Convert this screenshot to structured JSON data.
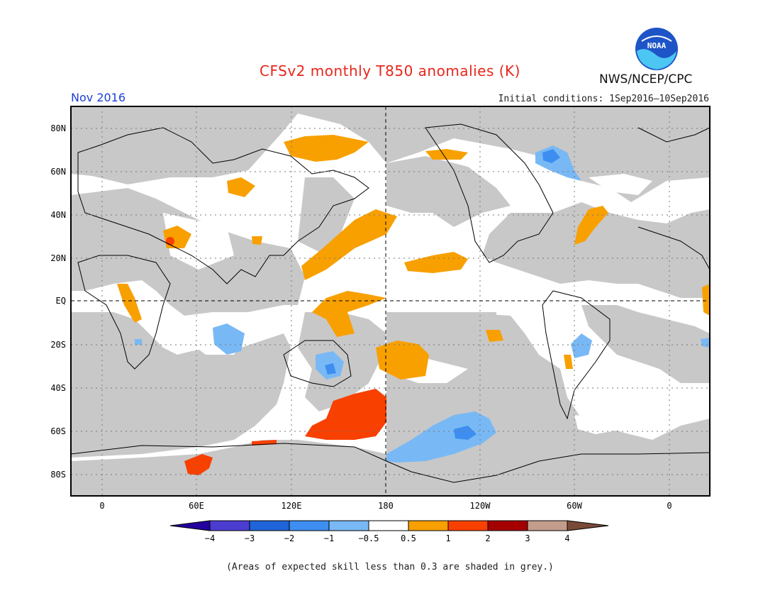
{
  "title": "CFSv2 monthly T850 anomalies (K)",
  "agency": "NWS/NCEP/CPC",
  "logo_text": "NOAA",
  "month": "Nov 2016",
  "initial_conditions": "Initial conditions: 1Sep2016–10Sep2016",
  "caption": "(Areas of expected skill less than 0.3 are shaded in grey.)",
  "map": {
    "lat_ticks": [
      "80N",
      "60N",
      "40N",
      "20N",
      "EQ",
      "20S",
      "40S",
      "60S",
      "80S"
    ],
    "lon_ticks": [
      "0",
      "60E",
      "120E",
      "180",
      "120W",
      "60W",
      "0"
    ],
    "colors": {
      "grey_low_skill": "#c8c8c8",
      "neutral": "#ffffff"
    }
  },
  "colorbar": {
    "labels": [
      "−4",
      "−3",
      "−2",
      "−1",
      "−0.5",
      "0.5",
      "1",
      "2",
      "3",
      "4"
    ],
    "colors": [
      "#24009e",
      "#4b3dd0",
      "#1f64d8",
      "#3d8ef0",
      "#78b9f5",
      "#ffffff",
      "#f8a000",
      "#f84000",
      "#a50000",
      "#c39c8c",
      "#7a4a38"
    ]
  }
}
